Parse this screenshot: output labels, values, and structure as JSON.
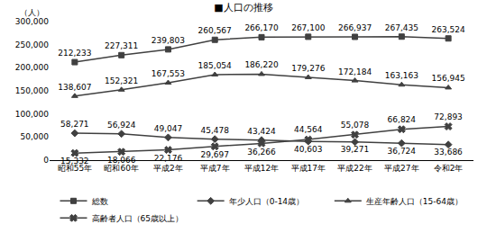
{
  "chart_data": {
    "type": "line",
    "title": "■人口の推移",
    "y_label": "（人）",
    "categories": [
      "昭和55年",
      "昭和60年",
      "平成2年",
      "平成7年",
      "平成12年",
      "平成17年",
      "平成22年",
      "平成27年",
      "令和2年"
    ],
    "series": [
      {
        "name": "総数",
        "color": "#404040",
        "marker": "square",
        "line_style": "solid",
        "values": [
          212233,
          227311,
          239803,
          260567,
          266170,
          267100,
          266937,
          267435,
          263524
        ],
        "value_labels": [
          "212,233",
          "227,311",
          "239,803",
          "260,567",
          "266,170",
          "267,100",
          "266,937",
          "267,435",
          "263,524"
        ]
      },
      {
        "name": "年少人口（0-14歳）",
        "color": "#404040",
        "marker": "diamond",
        "line_style": "solid",
        "values": [
          58271,
          56924,
          49047,
          45478,
          43424,
          40603,
          39271,
          36724,
          33686
        ],
        "value_labels": [
          "58,271",
          "56,924",
          "49,047",
          "45,478",
          "43,424",
          "40,603",
          "39,271",
          "36,724",
          "33,686"
        ]
      },
      {
        "name": "生産年齢人口（15-64歳）",
        "color": "#404040",
        "marker": "triangle-up",
        "line_style": "solid",
        "values": [
          138607,
          152321,
          167553,
          185054,
          186220,
          179276,
          172184,
          163163,
          156945
        ],
        "value_labels": [
          "138,607",
          "152,321",
          "167,553",
          "185,054",
          "186,220",
          "179,276",
          "172,184",
          "163,163",
          "156,945"
        ]
      },
      {
        "name": "高齢者人口（65歳以上）",
        "color": "#404040",
        "marker": "x",
        "line_style": "solid",
        "values": [
          15332,
          18066,
          22176,
          29697,
          36266,
          44564,
          55078,
          66824,
          72893
        ],
        "value_labels": [
          "15,332",
          "18,066",
          "22,176",
          "29,697",
          "36,266",
          "44,564",
          "55,078",
          "66,824",
          "72,893"
        ]
      }
    ],
    "ylim": [
      0,
      300000
    ],
    "yticks": [
      0,
      {
        "value": 50000,
        "label": "50,000"
      },
      {
        "value": 100000,
        "label": "100,000"
      },
      {
        "value": 150000,
        "label": "150,000"
      },
      {
        "value": 200000,
        "label": "200,000"
      },
      {
        "value": 250000,
        "label": "250,000"
      },
      {
        "value": 300000,
        "label": "300,000"
      }
    ],
    "grid": false,
    "legend": "bottom",
    "data_labels": true
  }
}
